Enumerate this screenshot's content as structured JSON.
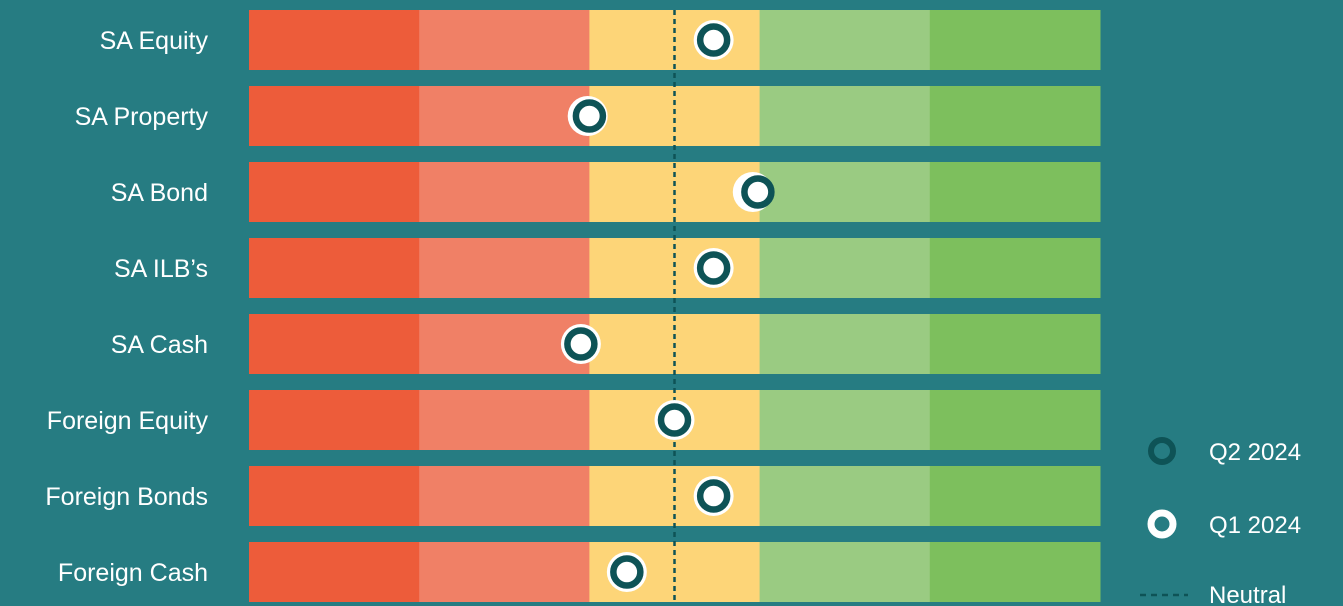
{
  "chart_data": {
    "type": "scatter",
    "title": "",
    "xlabel": "",
    "ylabel": "",
    "x_range": [
      0,
      5
    ],
    "neutral": 2.5,
    "zones": [
      {
        "from": 0,
        "to": 1,
        "color": "#ed5c3a"
      },
      {
        "from": 1,
        "to": 2,
        "color": "#f08066"
      },
      {
        "from": 2,
        "to": 3,
        "color": "#fdd578"
      },
      {
        "from": 3,
        "to": 4,
        "color": "#9acb82"
      },
      {
        "from": 4,
        "to": 5,
        "color": "#7dbf5d"
      }
    ],
    "categories": [
      "SA Equity",
      "SA Property",
      "SA Bond",
      "SA ILB’s",
      "SA Cash",
      "Foreign Equity",
      "Foreign Bonds",
      "Foreign Cash"
    ],
    "series": [
      {
        "name": "Q2 2024",
        "marker": "ring-dark",
        "values": [
          2.73,
          1.99,
          2.96,
          2.73,
          1.95,
          2.5,
          2.73,
          2.22
        ]
      },
      {
        "name": "Q1 2024",
        "marker": "ring-white",
        "values": [
          2.73,
          2.0,
          2.99,
          2.73,
          1.95,
          2.5,
          2.73,
          2.22
        ]
      }
    ],
    "legend": {
      "placement": "bottom-right",
      "neutral_label": "Neutral"
    },
    "colors": {
      "background": "#267c82",
      "dark_ring": "#0e5356",
      "white_ring": "#ffffff",
      "neutral_line": "#0e5356"
    }
  }
}
